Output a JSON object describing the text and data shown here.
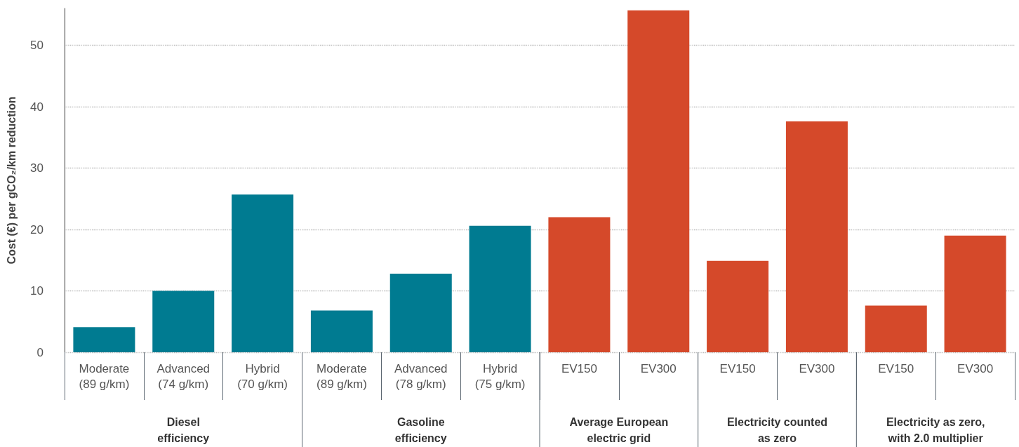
{
  "chart_data": {
    "type": "bar",
    "ylabel": "Cost (€) per gCO₂/km reduction",
    "categories": [
      "Moderate\n(89 g/km)",
      "Advanced\n(74 g/km)",
      "Hybrid\n(70 g/km)",
      "Moderate\n(89 g/km)",
      "Advanced\n(78 g/km)",
      "Hybrid\n(75 g/km)",
      "EV150",
      "EV300",
      "EV150",
      "EV300",
      "EV150",
      "EV300"
    ],
    "values": [
      4.1,
      10.0,
      25.7,
      6.8,
      12.8,
      20.6,
      22.0,
      55.7,
      14.9,
      37.6,
      7.6,
      19.0
    ],
    "colors": [
      "#007b91",
      "#007b91",
      "#007b91",
      "#007b91",
      "#007b91",
      "#007b91",
      "#d5492a",
      "#d5492a",
      "#d5492a",
      "#d5492a",
      "#d5492a",
      "#d5492a"
    ],
    "ylim": [
      0,
      56
    ],
    "yticks": [
      0,
      10,
      20,
      30,
      40,
      50
    ],
    "grid": "y",
    "annotations": [
      "Diesel\nefficiency",
      "Gasoline\nefficiency",
      "Average European\nelectric grid",
      "Electricity counted\nas zero",
      "Electricity as zero,\nwith 2.0 multiplier"
    ]
  }
}
